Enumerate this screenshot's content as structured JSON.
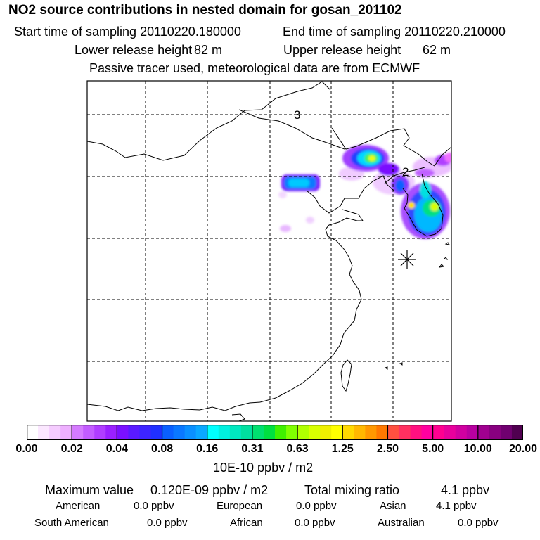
{
  "header": {
    "title": "NO2 source contributions in nested domain for gosan_201102",
    "start_label": "Start time of sampling 20110220.180000",
    "end_label": "End time of sampling 20110220.210000",
    "lower_label": "Lower release height",
    "lower_value": "82 m",
    "upper_label": "Upper release height",
    "upper_value": "62 m",
    "subtitle": "Passive tracer used, meteorological data are from ECMWF"
  },
  "chart_data": {
    "type": "heatmap",
    "title": "NO2 source contributions in nested domain for gosan_201102",
    "units": "10E-10 ppbv / m2",
    "grid": true,
    "map_labels": [
      "3",
      "2"
    ],
    "receptor": "gosan",
    "colorbar": {
      "tick_labels": [
        "0.00",
        "0.02",
        "0.04",
        "0.08",
        "0.16",
        "0.31",
        "0.63",
        "1.25",
        "2.50",
        "5.00",
        "10.00",
        "20.00"
      ],
      "colors": [
        "#ffffff",
        "#fbe7ff",
        "#f5ccff",
        "#eeb0ff",
        "#d57bff",
        "#c35cff",
        "#b03dff",
        "#9a20ff",
        "#7a10ff",
        "#5a1aff",
        "#3d24ff",
        "#2030ff",
        "#0a60ff",
        "#0a78ff",
        "#0a90ff",
        "#0aa8ff",
        "#00ffff",
        "#00f0e0",
        "#00e8c0",
        "#00e0a0",
        "#00e070",
        "#00e040",
        "#40f000",
        "#80ff00",
        "#b0ff00",
        "#d8ff00",
        "#f0f000",
        "#ffff00",
        "#ffd800",
        "#ffb800",
        "#ff9800",
        "#ff7800",
        "#ff5040",
        "#ff3060",
        "#ff1080",
        "#ff00a0",
        "#ff0090",
        "#e8009c",
        "#d000a0",
        "#b800a0",
        "#a00090",
        "#880080",
        "#700070",
        "#500050"
      ]
    },
    "stats": {
      "max_label": "Maximum value",
      "max_value": "0.120E-09 ppbv / m2",
      "total_label": "Total mixing ratio",
      "total_value": "4.1 ppbv"
    },
    "regions": [
      {
        "name": "American",
        "value": "0.0 ppbv"
      },
      {
        "name": "European",
        "value": "0.0 ppbv"
      },
      {
        "name": "Asian",
        "value": "4.1 ppbv"
      },
      {
        "name": "South American",
        "value": "0.0 ppbv"
      },
      {
        "name": "African",
        "value": "0.0 ppbv"
      },
      {
        "name": "Australian",
        "value": "0.0 ppbv"
      }
    ]
  }
}
